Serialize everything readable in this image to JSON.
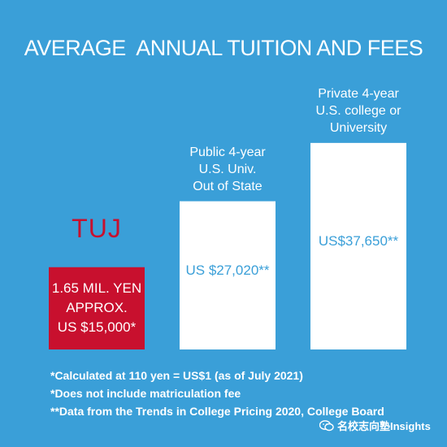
{
  "title": "AVERAGE  ANNUAL TUITION AND FEES",
  "brand_label": "TUJ",
  "colors": {
    "background": "#3a9fd8",
    "tuj_bar": "#c8102e",
    "other_bars": "#ffffff",
    "value_text_white_bar": "#3a9fd8",
    "value_text_red_bar": "#ffffff"
  },
  "chart_data": {
    "type": "bar",
    "title": "AVERAGE  ANNUAL TUITION AND FEES",
    "xlabel": "",
    "ylabel": "",
    "ylim": [
      0,
      40000
    ],
    "categories": [
      "",
      "Public 4-year\nU.S. Univ.\nOut of State",
      "Private 4-year\nU.S. college or\nUniversity"
    ],
    "values": [
      15000,
      27020,
      37650
    ],
    "value_labels": [
      "1.65 MIL. YEN\nAPPROX.\nUS $15,000*",
      "US $27,020**",
      "US$37,650**"
    ],
    "grid": false,
    "legend": "none"
  },
  "footnotes": [
    "*Calculated at 110 yen = US$1 (as of July 2021)",
    "*Does not include matriculation fee",
    "**Data from the Trends in College Pricing 2020, College Board"
  ],
  "watermark": {
    "icon": "wechat-icon",
    "text": "名校志向塾Insights"
  }
}
